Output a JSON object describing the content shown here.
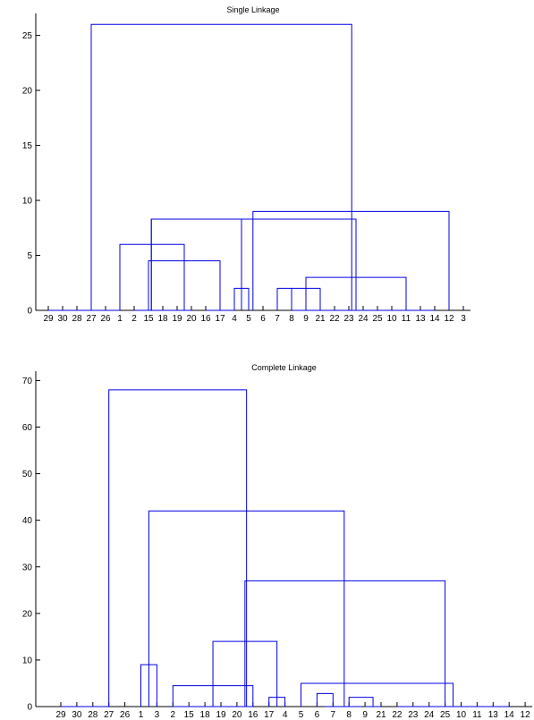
{
  "chart_data": [
    {
      "type": "dendrogram",
      "title": "Single Linkage",
      "ylim": [
        0,
        27
      ],
      "yticks": [
        0,
        5,
        10,
        15,
        20,
        25
      ],
      "leaf_order": [
        "29",
        "30",
        "28",
        "27",
        "26",
        "1",
        "2",
        "15",
        "18",
        "19",
        "20",
        "16",
        "17",
        "4",
        "5",
        "6",
        "7",
        "8",
        "9",
        "21",
        "22",
        "23",
        "24",
        "25",
        "10",
        "11",
        "13",
        "14",
        "12",
        "3"
      ],
      "links": [
        {
          "from": [
            1,
            2
          ],
          "height": 0
        },
        {
          "from": [
            3,
            4
          ],
          "height": 0
        },
        {
          "from": [
            5,
            6
          ],
          "height": 0
        },
        {
          "from": [
            8,
            9
          ],
          "height": 0
        },
        {
          "from": [
            10,
            11
          ],
          "height": 0
        },
        {
          "from": [
            13,
            14
          ],
          "height": 0
        },
        {
          "from": [
            18,
            19
          ],
          "height": 0
        },
        {
          "from": [
            20,
            21
          ],
          "height": 0
        },
        {
          "from": [
            22,
            23
          ],
          "height": 0
        },
        {
          "from": [
            24,
            25
          ],
          "height": 0
        },
        {
          "from": [
            27,
            28
          ],
          "height": 0
        },
        {
          "from": [
            1.5,
            3.5
          ],
          "height": 0
        },
        {
          "from": [
            3.5,
            5.5
          ],
          "height": 0
        },
        {
          "from": [
            7,
            9
          ],
          "height": 0
        },
        {
          "from": [
            9,
            11
          ],
          "height": 0
        },
        {
          "from": [
            12,
            13
          ],
          "height": 0
        },
        {
          "from": [
            18.5,
            20.5
          ],
          "height": 0
        },
        {
          "from": [
            20.5,
            22.5
          ],
          "height": 0
        },
        {
          "from": [
            22.5,
            24.5
          ],
          "height": 0
        },
        {
          "from": [
            24.5,
            27.5
          ],
          "height": 0
        },
        {
          "from": [
            14,
            15
          ],
          "height": 2
        },
        {
          "from": [
            17,
            18
          ],
          "height": 2
        },
        {
          "from": [
            18,
            20
          ],
          "height": 2
        },
        {
          "from": [
            19,
            26
          ],
          "height": 3
        },
        {
          "from": [
            8,
            13
          ],
          "height": 4.5
        },
        {
          "from": [
            6,
            10.5
          ],
          "height": 6
        },
        {
          "from": [
            8.2,
            22.5
          ],
          "height": 8.3
        },
        {
          "from": [
            14.5,
            8.2
          ],
          "height": 8.3
        },
        {
          "from": [
            15.3,
            29
          ],
          "height": 9
        },
        {
          "from": [
            4,
            22.2
          ],
          "height": 26
        }
      ]
    },
    {
      "type": "dendrogram",
      "title": "Complete Linkage",
      "ylim": [
        0,
        72
      ],
      "yticks": [
        0,
        10,
        20,
        30,
        40,
        50,
        60,
        70
      ],
      "leaf_order": [
        "29",
        "30",
        "28",
        "27",
        "26",
        "1",
        "3",
        "2",
        "15",
        "18",
        "19",
        "20",
        "16",
        "17",
        "4",
        "5",
        "6",
        "7",
        "8",
        "9",
        "21",
        "22",
        "23",
        "24",
        "25",
        "10",
        "11",
        "13",
        "14",
        "12"
      ],
      "links": [
        {
          "from": [
            1,
            2
          ],
          "height": 0
        },
        {
          "from": [
            3,
            4
          ],
          "height": 0
        },
        {
          "from": [
            1.5,
            3.5
          ],
          "height": 0
        },
        {
          "from": [
            8,
            9
          ],
          "height": 0
        },
        {
          "from": [
            10,
            11
          ],
          "height": 0
        },
        {
          "from": [
            12,
            13
          ],
          "height": 0
        },
        {
          "from": [
            9,
            11
          ],
          "height": 0
        },
        {
          "from": [
            8.5,
            12.5
          ],
          "height": 0
        },
        {
          "from": [
            22,
            23
          ],
          "height": 0
        },
        {
          "from": [
            24,
            25
          ],
          "height": 0
        },
        {
          "from": [
            26,
            27
          ],
          "height": 0
        },
        {
          "from": [
            28,
            29
          ],
          "height": 0
        },
        {
          "from": [
            22.5,
            24.5
          ],
          "height": 0
        },
        {
          "from": [
            26.5,
            28.5
          ],
          "height": 0
        },
        {
          "from": [
            23.5,
            27.5
          ],
          "height": 0
        },
        {
          "from": [
            20,
            21
          ],
          "height": 0
        },
        {
          "from": [
            14,
            15
          ],
          "height": 2
        },
        {
          "from": [
            19,
            20.5
          ],
          "height": 2
        },
        {
          "from": [
            17,
            18
          ],
          "height": 2.8
        },
        {
          "from": [
            17.5,
            19.8
          ],
          "height": 0
        },
        {
          "from": [
            6,
            7
          ],
          "height": 9
        },
        {
          "from": [
            8,
            13
          ],
          "height": 4.5
        },
        {
          "from": [
            16,
            25.5
          ],
          "height": 5
        },
        {
          "from": [
            10.5,
            14.5
          ],
          "height": 14
        },
        {
          "from": [
            12.5,
            25
          ],
          "height": 27
        },
        {
          "from": [
            6.5,
            18.7
          ],
          "height": 42
        },
        {
          "from": [
            4,
            12.6
          ],
          "height": 68
        }
      ]
    }
  ]
}
